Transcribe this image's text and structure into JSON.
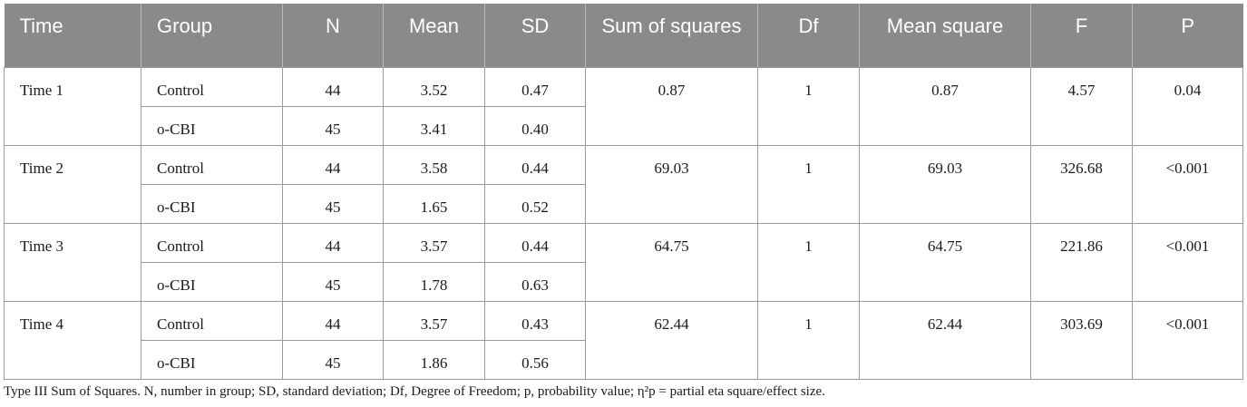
{
  "table": {
    "headers": [
      "Time",
      "Group",
      "N",
      "Mean",
      "SD",
      "Sum of squares",
      "Df",
      "Mean square",
      "F",
      "P"
    ],
    "blocks": [
      {
        "time": "Time 1",
        "rows": [
          {
            "group": "Control",
            "n": "44",
            "mean": "3.52",
            "sd": "0.47"
          },
          {
            "group": "o-CBI",
            "n": "45",
            "mean": "3.41",
            "sd": "0.40"
          }
        ],
        "sum_of_squares": "0.87",
        "df": "1",
        "mean_square": "0.87",
        "f": "4.57",
        "p": "0.04"
      },
      {
        "time": "Time 2",
        "rows": [
          {
            "group": "Control",
            "n": "44",
            "mean": "3.58",
            "sd": "0.44"
          },
          {
            "group": "o-CBI",
            "n": "45",
            "mean": "1.65",
            "sd": "0.52"
          }
        ],
        "sum_of_squares": "69.03",
        "df": "1",
        "mean_square": "69.03",
        "f": "326.68",
        "p": "<0.001"
      },
      {
        "time": "Time 3",
        "rows": [
          {
            "group": "Control",
            "n": "44",
            "mean": "3.57",
            "sd": "0.44"
          },
          {
            "group": "o-CBI",
            "n": "45",
            "mean": "1.78",
            "sd": "0.63"
          }
        ],
        "sum_of_squares": "64.75",
        "df": "1",
        "mean_square": "64.75",
        "f": "221.86",
        "p": "<0.001"
      },
      {
        "time": "Time 4",
        "rows": [
          {
            "group": "Control",
            "n": "44",
            "mean": "3.57",
            "sd": "0.43"
          },
          {
            "group": "o-CBI",
            "n": "45",
            "mean": "1.86",
            "sd": "0.56"
          }
        ],
        "sum_of_squares": "62.44",
        "df": "1",
        "mean_square": "62.44",
        "f": "303.69",
        "p": "<0.001"
      }
    ],
    "header_bg_color": "#8a8a8a"
  },
  "footnote": "Type III Sum of Squares. N, number in group; SD, standard deviation; Df, Degree of Freedom; p, probability value; η²p = partial eta square/effect size."
}
